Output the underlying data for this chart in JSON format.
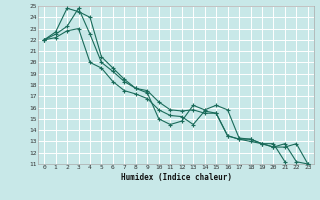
{
  "xlabel": "Humidex (Indice chaleur)",
  "bg_color": "#c8e8e8",
  "grid_color": "#ffffff",
  "grid_minor_color": "#ddeedd",
  "line_color": "#1a6b5a",
  "xlim": [
    -0.5,
    23.5
  ],
  "ylim": [
    11,
    25
  ],
  "xticks": [
    0,
    1,
    2,
    3,
    4,
    5,
    6,
    7,
    8,
    9,
    10,
    11,
    12,
    13,
    14,
    15,
    16,
    17,
    18,
    19,
    20,
    21,
    22,
    23
  ],
  "yticks": [
    11,
    12,
    13,
    14,
    15,
    16,
    17,
    18,
    19,
    20,
    21,
    22,
    23,
    24,
    25
  ],
  "series": [
    {
      "x": [
        0,
        1,
        2,
        3,
        4,
        5,
        6,
        7,
        8,
        9,
        10,
        11,
        12,
        13,
        14,
        15,
        16,
        17,
        18,
        19,
        20,
        21,
        22,
        23
      ],
      "y": [
        22,
        22.7,
        24.8,
        24.5,
        24.0,
        20.5,
        19.5,
        18.5,
        17.7,
        17.5,
        16.5,
        15.8,
        15.7,
        15.8,
        15.5,
        15.5,
        13.5,
        13.2,
        13.0,
        12.8,
        12.5,
        12.5,
        12.8,
        11.0
      ]
    },
    {
      "x": [
        0,
        1,
        2,
        3,
        4,
        5,
        6,
        7,
        8,
        9,
        10,
        11,
        12,
        13,
        14,
        15,
        16,
        17,
        18,
        19,
        20,
        21,
        22,
        23
      ],
      "y": [
        22,
        22.5,
        23.2,
        24.8,
        22.5,
        20.0,
        19.2,
        18.3,
        17.7,
        17.3,
        15.0,
        14.5,
        14.8,
        16.2,
        15.8,
        16.2,
        15.8,
        13.3,
        13.2,
        12.8,
        12.5,
        12.8,
        11.2,
        11.0
      ]
    },
    {
      "x": [
        0,
        1,
        2,
        3,
        4,
        5,
        6,
        7,
        8,
        9,
        10,
        11,
        12,
        13,
        14,
        15,
        16,
        17,
        18,
        19,
        20,
        21
      ],
      "y": [
        22,
        22.2,
        22.8,
        23.0,
        20.0,
        19.5,
        18.3,
        17.5,
        17.2,
        16.8,
        15.8,
        15.3,
        15.2,
        14.5,
        15.7,
        15.5,
        13.5,
        13.2,
        13.2,
        12.8,
        12.8,
        11.2
      ]
    }
  ]
}
